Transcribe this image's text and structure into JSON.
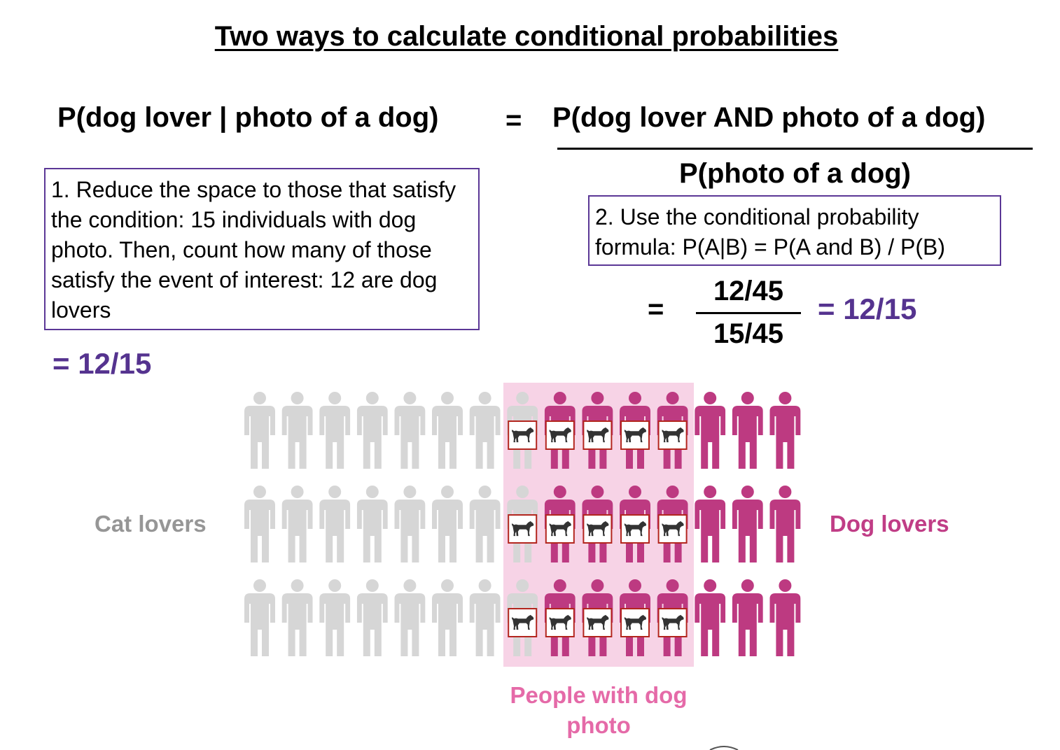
{
  "title": "Two ways to calculate conditional probabilities",
  "formula": {
    "lhs": "P(dog lover | photo of a dog)",
    "equals": "=",
    "numerator": "P(dog lover AND photo of a dog)",
    "denominator": "P(photo of a dog)"
  },
  "method1": {
    "text": "1. Reduce the space to those that satisfy the condition: 15 individuals with dog photo. Then, count how many of those satisfy the event of interest: 12 are dog lovers",
    "result": "= 12/15"
  },
  "method2": {
    "text": "2. Use the conditional probability formula: P(A|B) = P(A and B) / P(B)",
    "equals": "=",
    "numerator": "12/45",
    "denominator": "15/45",
    "result": "= 12/15"
  },
  "population": {
    "rows": 3,
    "columns": 15,
    "cat_lovers_per_row": 8,
    "dog_lovers_per_row": 7,
    "dog_photo_columns_per_row": 5,
    "dog_photo_holders_cat_lovers_per_row": 1,
    "dog_photo_holders_dog_lovers_per_row": 4,
    "colors": {
      "cat_lover": "#d6d6d6",
      "dog_lover": "#bd3a81",
      "highlight": "#f7d3e6",
      "photo_border": "#b3261e",
      "dog_silhouette": "#333333"
    }
  },
  "labels": {
    "cat_lovers": "Cat lovers",
    "dog_lovers": "Dog lovers",
    "dog_photo": "People with dog photo"
  },
  "colors": {
    "accent_purple": "#55338f",
    "cat_label": "#969696",
    "dog_label": "#c03d86",
    "photo_label": "#e56aa8"
  }
}
